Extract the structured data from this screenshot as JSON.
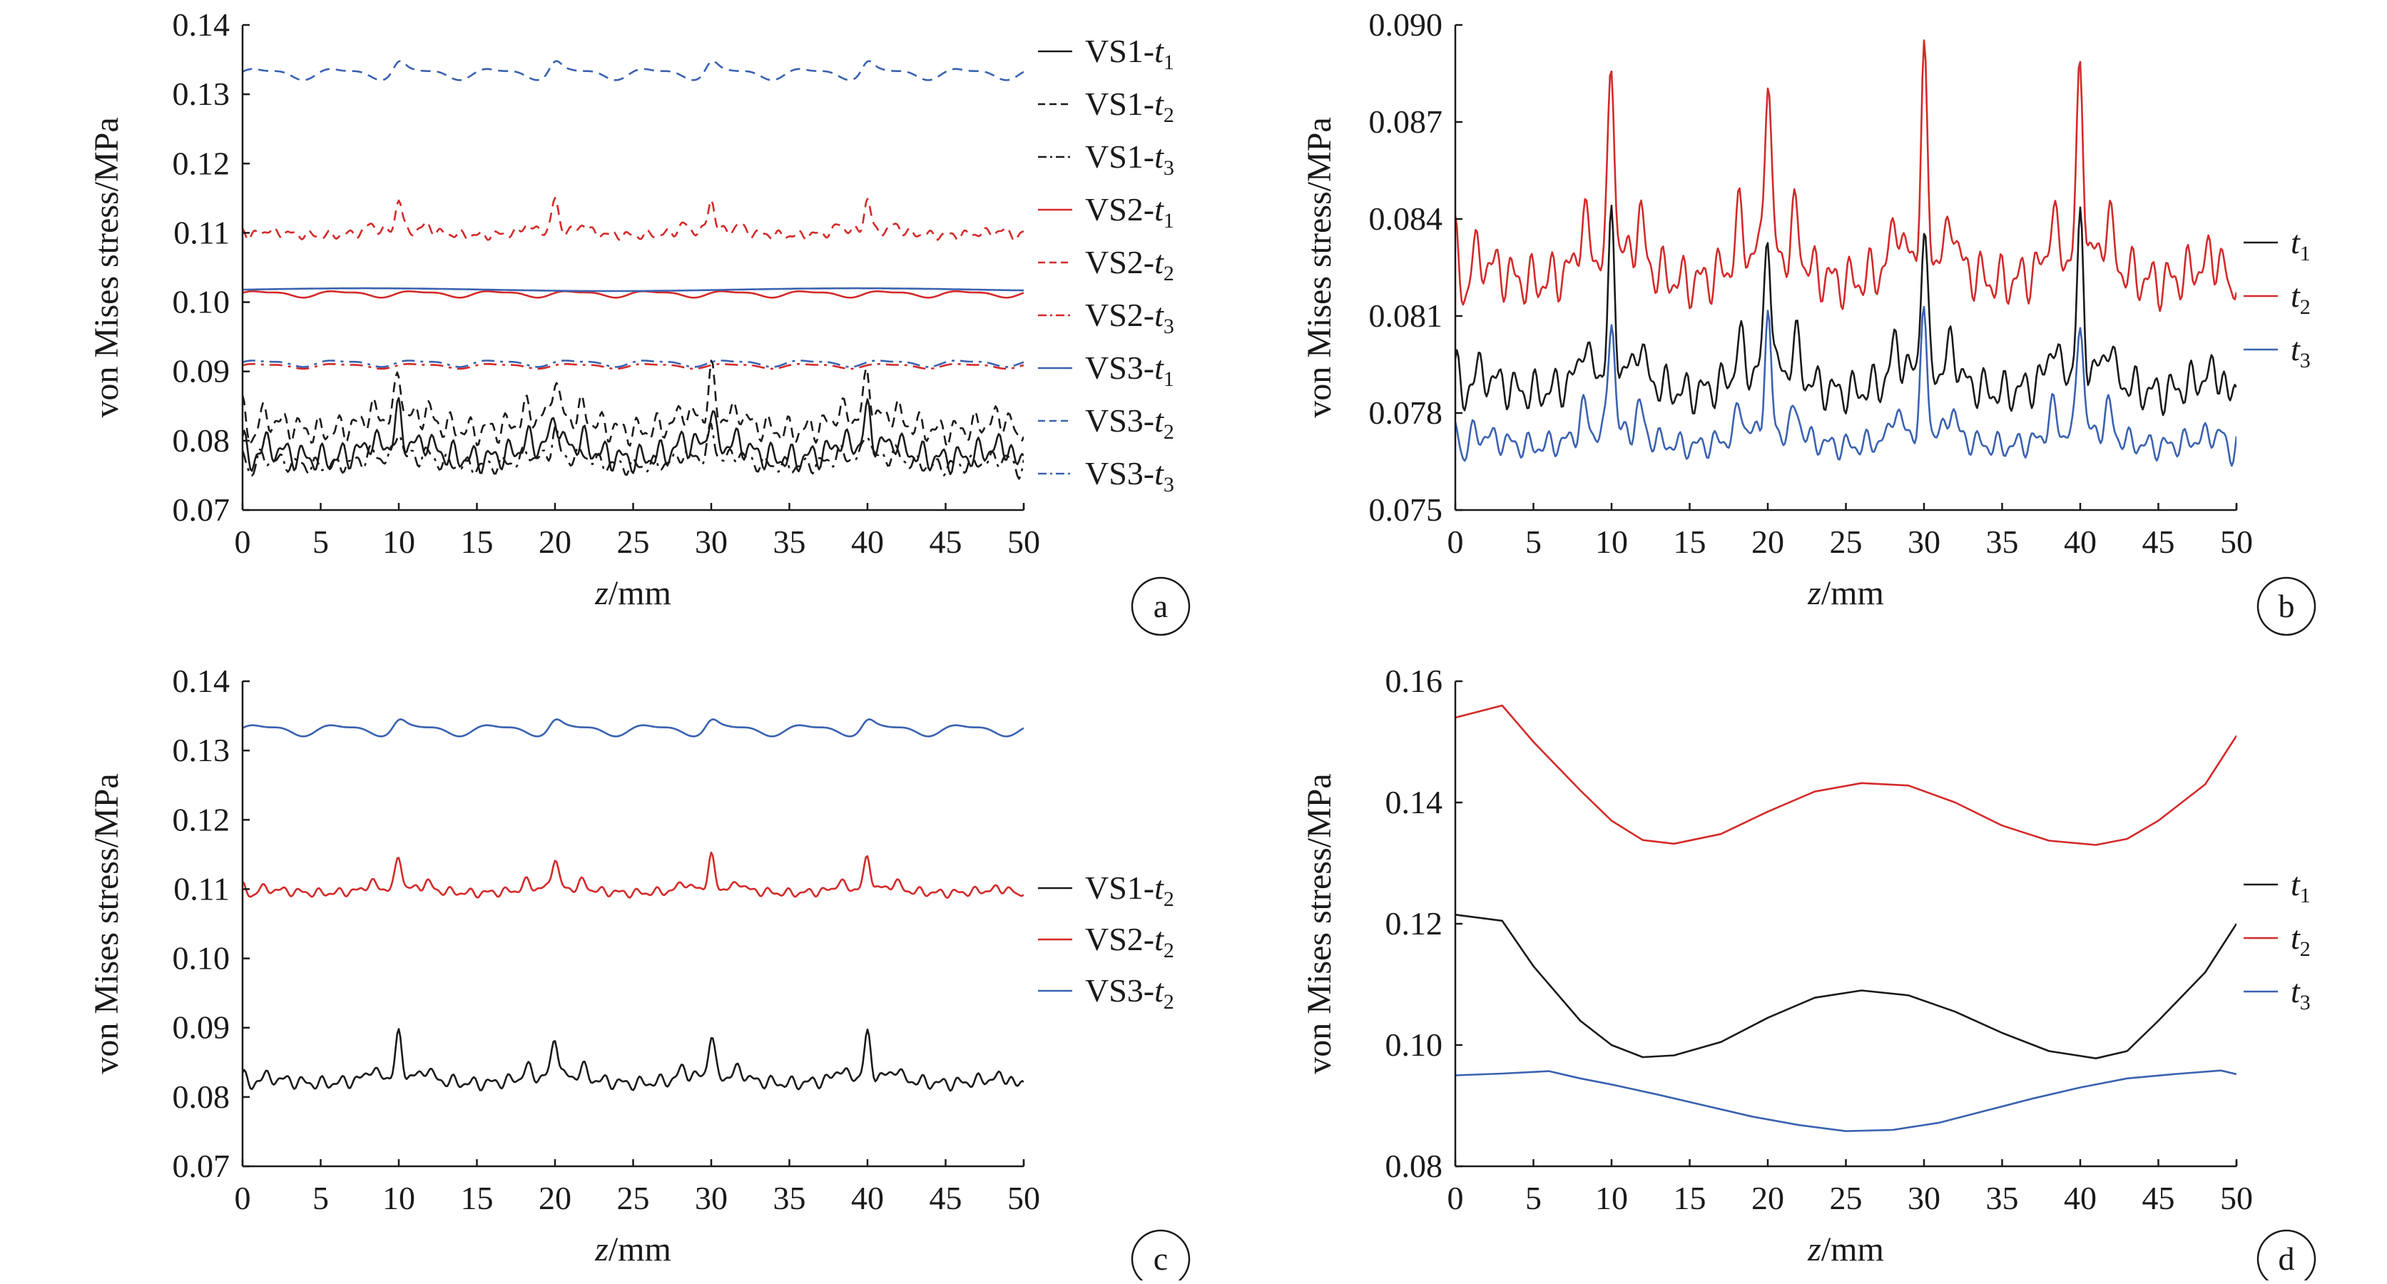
{
  "figure": {
    "chart_data": [
      {
        "panel": "a",
        "type": "line",
        "xlabel": "z/mm",
        "ylabel": "von Mises stress/MPa",
        "xlim": [
          0,
          50
        ],
        "ylim": [
          0.07,
          0.14
        ],
        "xticks": [
          0,
          5,
          10,
          15,
          20,
          25,
          30,
          35,
          40,
          45,
          50
        ],
        "yticks": [
          0.07,
          0.08,
          0.09,
          0.1,
          0.11,
          0.12,
          0.13,
          0.14
        ],
        "ytick_labels": [
          "0.07",
          "0.08",
          "0.09",
          "0.10",
          "0.11",
          "0.12",
          "0.13",
          "0.14"
        ],
        "legend_position": "right",
        "series": [
          {
            "name": "VS1-t1",
            "label": "VS1-",
            "sub": "1",
            "color": "#1a1a1a",
            "dash": "solid",
            "gen": "spiky",
            "base": 0.0785,
            "amp": 0.0025,
            "peak": 0.0045
          },
          {
            "name": "VS1-t2",
            "label": "VS1-",
            "sub": "2",
            "color": "#1a1a1a",
            "dash": "dash",
            "gen": "spiky",
            "base": 0.0825,
            "amp": 0.0025,
            "peak": 0.006
          },
          {
            "name": "VS1-t3",
            "label": "VS1-",
            "sub": "3",
            "color": "#1a1a1a",
            "dash": "dashdot",
            "gen": "spiky",
            "base": 0.077,
            "amp": 0.0015,
            "peak": 0.004
          },
          {
            "name": "VS2-t1",
            "label": "VS2-",
            "sub": "1",
            "color": "#d42a2a",
            "dash": "solid",
            "gen": "smooth",
            "base": 0.1012,
            "amp": 0.0004,
            "peak": 0
          },
          {
            "name": "VS2-t2",
            "label": "VS2-",
            "sub": "2",
            "color": "#d42a2a",
            "dash": "dash",
            "gen": "spiky",
            "base": 0.11,
            "amp": 0.0008,
            "peak": 0.0045
          },
          {
            "name": "VS2-t3",
            "label": "VS2-",
            "sub": "3",
            "color": "#d42a2a",
            "dash": "dashdot",
            "gen": "smooth",
            "base": 0.0908,
            "amp": 0.0003,
            "peak": 0
          },
          {
            "name": "VS3-t1",
            "label": "VS3-",
            "sub": "1",
            "color": "#3a62b0",
            "dash": "solid",
            "gen": "flat",
            "base": 0.1018,
            "amp": 0.0002,
            "peak": 0
          },
          {
            "name": "VS3-t2",
            "label": "VS3-",
            "sub": "2",
            "color": "#3a62b0",
            "dash": "dash",
            "gen": "smooth",
            "base": 0.133,
            "amp": 0.0007,
            "peak": 0.0015
          },
          {
            "name": "VS3-t3",
            "label": "VS3-",
            "sub": "3",
            "color": "#3a62b0",
            "dash": "dashdot",
            "gen": "smooth",
            "base": 0.0912,
            "amp": 0.0004,
            "peak": 0
          }
        ]
      },
      {
        "panel": "b",
        "type": "line",
        "xlabel": "z/mm",
        "ylabel": "von Mises stress/MPa",
        "xlim": [
          0,
          50
        ],
        "ylim": [
          0.075,
          0.09
        ],
        "xticks": [
          0,
          5,
          10,
          15,
          20,
          25,
          30,
          35,
          40,
          45,
          50
        ],
        "yticks": [
          0.075,
          0.078,
          0.081,
          0.084,
          0.087,
          0.09
        ],
        "ytick_labels": [
          "0.075",
          "0.078",
          "0.081",
          "0.084",
          "0.087",
          "0.090"
        ],
        "legend_position": "right",
        "series": [
          {
            "name": "t1",
            "label": "t",
            "sub": "1",
            "color": "#1a1a1a",
            "dash": "solid",
            "gen": "spiky",
            "base": 0.079,
            "amp": 0.0008,
            "peak": 0.0044
          },
          {
            "name": "t2",
            "label": "t",
            "sub": "2",
            "color": "#d42a2a",
            "dash": "solid",
            "gen": "spiky",
            "base": 0.0825,
            "amp": 0.001,
            "peak": 0.0058
          },
          {
            "name": "t3",
            "label": "t",
            "sub": "3",
            "color": "#3a62b0",
            "dash": "solid",
            "gen": "spiky",
            "base": 0.0772,
            "amp": 0.0005,
            "peak": 0.0036
          }
        ]
      },
      {
        "panel": "c",
        "type": "line",
        "xlabel": "z/mm",
        "ylabel": "von Mises stress/MPa",
        "xlim": [
          0,
          50
        ],
        "ylim": [
          0.07,
          0.14
        ],
        "xticks": [
          0,
          5,
          10,
          15,
          20,
          25,
          30,
          35,
          40,
          45,
          50
        ],
        "yticks": [
          0.07,
          0.08,
          0.09,
          0.1,
          0.11,
          0.12,
          0.13,
          0.14
        ],
        "ytick_labels": [
          "0.07",
          "0.08",
          "0.09",
          "0.10",
          "0.11",
          "0.12",
          "0.13",
          "0.14"
        ],
        "legend_position": "right",
        "series": [
          {
            "name": "VS1-t2",
            "label": "VS1-",
            "sub": "2",
            "color": "#1a1a1a",
            "dash": "solid",
            "gen": "spiky",
            "base": 0.0825,
            "amp": 0.0012,
            "peak": 0.0058
          },
          {
            "name": "VS2-t2",
            "label": "VS2-",
            "sub": "2",
            "color": "#d42a2a",
            "dash": "solid",
            "gen": "spiky",
            "base": 0.1098,
            "amp": 0.0008,
            "peak": 0.0045
          },
          {
            "name": "VS3-t2",
            "label": "VS3-",
            "sub": "2",
            "color": "#3a62b0",
            "dash": "solid",
            "gen": "smooth",
            "base": 0.133,
            "amp": 0.0007,
            "peak": 0.0012
          }
        ]
      },
      {
        "panel": "d",
        "type": "line",
        "xlabel": "z/mm",
        "ylabel": "von Mises stress/MPa",
        "xlim": [
          0,
          50
        ],
        "ylim": [
          0.08,
          0.16
        ],
        "xticks": [
          0,
          5,
          10,
          15,
          20,
          25,
          30,
          35,
          40,
          45,
          50
        ],
        "yticks": [
          0.08,
          0.1,
          0.12,
          0.14,
          0.16
        ],
        "ytick_labels": [
          "0.08",
          "0.10",
          "0.12",
          "0.14",
          "0.16"
        ],
        "legend_position": "right",
        "series": [
          {
            "name": "t1",
            "label": "t",
            "sub": "1",
            "color": "#1a1a1a",
            "dash": "solid",
            "gen": "points",
            "x": [
              0,
              3,
              5,
              8,
              10,
              12,
              14,
              17,
              20,
              23,
              26,
              29,
              32,
              35,
              38,
              41,
              43,
              45,
              48,
              50
            ],
            "y": [
              0.1215,
              0.1205,
              0.113,
              0.104,
              0.1,
              0.098,
              0.0983,
              0.1005,
              0.1045,
              0.1078,
              0.109,
              0.1082,
              0.1055,
              0.102,
              0.099,
              0.0978,
              0.099,
              0.104,
              0.112,
              0.12
            ]
          },
          {
            "name": "t2",
            "label": "t",
            "sub": "2",
            "color": "#d42a2a",
            "dash": "solid",
            "gen": "points",
            "x": [
              0,
              3,
              5,
              8,
              10,
              12,
              14,
              17,
              20,
              23,
              26,
              29,
              32,
              35,
              38,
              41,
              43,
              45,
              48,
              50
            ],
            "y": [
              0.154,
              0.156,
              0.15,
              0.142,
              0.137,
              0.1338,
              0.1332,
              0.1348,
              0.1385,
              0.1418,
              0.1432,
              0.1428,
              0.14,
              0.1362,
              0.1337,
              0.133,
              0.134,
              0.137,
              0.143,
              0.151
            ]
          },
          {
            "name": "t3",
            "label": "t",
            "sub": "3",
            "color": "#3a62b0",
            "dash": "solid",
            "gen": "points",
            "x": [
              0,
              3,
              6,
              8,
              10,
              13,
              16,
              19,
              22,
              25,
              28,
              31,
              34,
              37,
              40,
              43,
              46,
              49,
              50
            ],
            "y": [
              0.095,
              0.0953,
              0.0957,
              0.0945,
              0.0935,
              0.0918,
              0.09,
              0.0882,
              0.0868,
              0.0858,
              0.086,
              0.0872,
              0.0892,
              0.0912,
              0.093,
              0.0945,
              0.0952,
              0.0958,
              0.0952
            ]
          }
        ]
      }
    ]
  }
}
